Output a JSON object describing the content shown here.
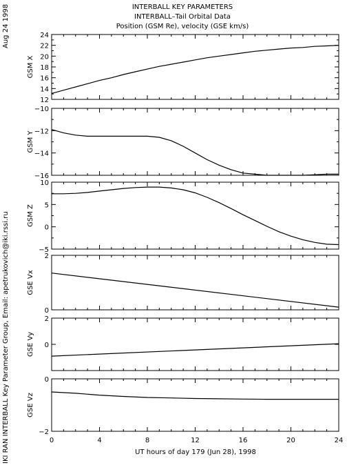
{
  "header": {
    "title_lines": [
      "INTERBALL KEY PARAMETERS",
      "INTERBALL–Tail Orbital Data",
      "Position (GSM Re), velocity (GSE km/s)"
    ],
    "date_stamp": "Aug 24 1998",
    "credit": "IKI RAN INTERBALL Key Parameter Group, Email: apetrukovich@iki.rssi.ru"
  },
  "chart_data": [
    {
      "type": "line",
      "ylabel": "GSM X",
      "ylim": [
        12,
        24
      ],
      "yticks": [
        12,
        14,
        16,
        18,
        20,
        22,
        24
      ],
      "minor_yticks": true,
      "x": [
        0,
        1,
        2,
        3,
        4,
        5,
        6,
        7,
        8,
        9,
        10,
        11,
        12,
        13,
        14,
        15,
        16,
        17,
        18,
        19,
        20,
        21,
        22,
        23,
        24
      ],
      "series": [
        {
          "values": [
            13.1,
            13.7,
            14.3,
            14.9,
            15.5,
            16.0,
            16.6,
            17.1,
            17.6,
            18.1,
            18.5,
            18.9,
            19.3,
            19.7,
            20.0,
            20.3,
            20.6,
            20.9,
            21.1,
            21.3,
            21.5,
            21.6,
            21.8,
            21.9,
            22.0
          ]
        }
      ]
    },
    {
      "type": "line",
      "ylabel": "GSM Y",
      "ylim": [
        -16,
        -10
      ],
      "yticks": [
        -16,
        -14,
        -12,
        -10
      ],
      "minor_yticks": true,
      "x": [
        0,
        1,
        2,
        3,
        4,
        5,
        6,
        7,
        8,
        9,
        10,
        11,
        12,
        13,
        14,
        15,
        16,
        17,
        18,
        19,
        20,
        21,
        22,
        23,
        24
      ],
      "series": [
        {
          "values": [
            -11.9,
            -12.2,
            -12.4,
            -12.5,
            -12.5,
            -12.5,
            -12.5,
            -12.5,
            -12.5,
            -12.6,
            -12.9,
            -13.4,
            -14.0,
            -14.6,
            -15.1,
            -15.5,
            -15.8,
            -15.9,
            -16.0,
            -16.0,
            -16.0,
            -16.0,
            -15.95,
            -15.9,
            -15.9
          ]
        }
      ]
    },
    {
      "type": "line",
      "ylabel": "GSM Z",
      "ylim": [
        -5,
        10
      ],
      "yticks": [
        -5,
        0,
        5,
        10
      ],
      "minor_yticks": true,
      "x": [
        0,
        1,
        2,
        3,
        4,
        5,
        6,
        7,
        8,
        9,
        10,
        11,
        12,
        13,
        14,
        15,
        16,
        17,
        18,
        19,
        20,
        21,
        22,
        23,
        24
      ],
      "series": [
        {
          "values": [
            7.4,
            7.4,
            7.5,
            7.7,
            8.0,
            8.3,
            8.6,
            8.8,
            8.9,
            8.9,
            8.7,
            8.3,
            7.6,
            6.6,
            5.4,
            4.1,
            2.7,
            1.4,
            0.1,
            -1.1,
            -2.1,
            -2.9,
            -3.5,
            -3.9,
            -4.0
          ]
        }
      ]
    },
    {
      "type": "line",
      "ylabel": "GSE Vx",
      "ylim": [
        0,
        2
      ],
      "yticks": [
        0,
        2
      ],
      "minor_yticks": false,
      "x": [
        0,
        24
      ],
      "series": [
        {
          "values": [
            1.35,
            0.1
          ]
        }
      ]
    },
    {
      "type": "line",
      "ylabel": "GSE Vy",
      "ylim": [
        -2,
        2
      ],
      "yticks": [
        0,
        2
      ],
      "minor_yticks": false,
      "x": [
        0,
        24
      ],
      "series": [
        {
          "values": [
            -0.9,
            0.05
          ]
        }
      ]
    },
    {
      "type": "line",
      "ylabel": "GSE Vz",
      "ylim": [
        -2,
        0
      ],
      "yticks": [
        -2,
        0
      ],
      "minor_yticks": false,
      "x": [
        0,
        2,
        4,
        6,
        8,
        10,
        12,
        14,
        16,
        18,
        20,
        22,
        24
      ],
      "series": [
        {
          "values": [
            -0.5,
            -0.55,
            -0.62,
            -0.67,
            -0.71,
            -0.73,
            -0.75,
            -0.76,
            -0.77,
            -0.78,
            -0.78,
            -0.78,
            -0.78
          ]
        }
      ]
    }
  ],
  "x_axis": {
    "label": "UT hours of day 179 (Jun 28), 1998",
    "range": [
      0,
      24
    ],
    "ticks": [
      0,
      4,
      8,
      12,
      16,
      20,
      24
    ]
  }
}
